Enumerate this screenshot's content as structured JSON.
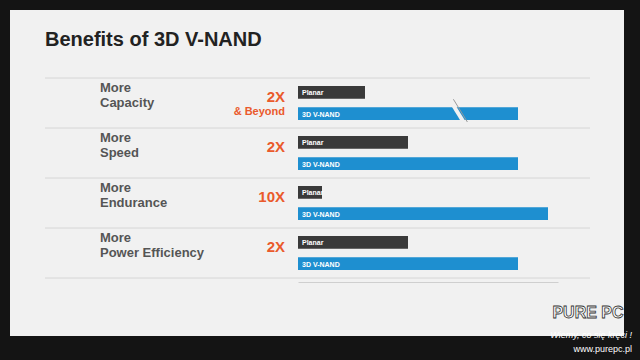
{
  "chart_data": {
    "type": "bar",
    "orientation": "horizontal",
    "title": "Benefits of 3D V-NAND",
    "categories": [
      "More Capacity",
      "More Speed",
      "More Endurance",
      "More Power Efficiency"
    ],
    "series": [
      {
        "name": "Planar",
        "color": "#3a3a3a",
        "values": [
          67,
          110,
          24,
          110
        ]
      },
      {
        "name": "3D V-NAND",
        "color": "#1e8fd0",
        "values": [
          220,
          220,
          250,
          220
        ]
      }
    ],
    "annotations": [
      [
        "2X",
        "& Beyond"
      ],
      [
        "2X"
      ],
      [
        "10X"
      ],
      [
        "2X"
      ]
    ],
    "xlim": [
      0,
      260
    ],
    "tick_labels": false,
    "watermark": [
      "PURE PC",
      "Wiemy, co się kręci !",
      "www.purepc.pl"
    ]
  }
}
